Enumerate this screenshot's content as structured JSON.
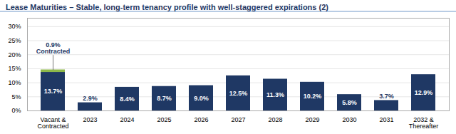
{
  "chart_data": {
    "type": "bar",
    "title": "Lease Maturities – Stable, long-term tenancy profile with well-staggered expirations (2)",
    "categories": [
      "Vacant &\nContracted",
      "2023",
      "2024",
      "2025",
      "2026",
      "2027",
      "2028",
      "2029",
      "2030",
      "2031",
      "2032 &\nThereafter"
    ],
    "stacked": true,
    "series": [
      {
        "color": "#1F3864",
        "values": [
          13.7,
          2.9,
          8.4,
          8.7,
          9.0,
          12.5,
          11.3,
          10.2,
          5.8,
          3.7,
          12.9
        ],
        "value_labels": [
          "13.7%",
          "2.9%",
          "8.4%",
          "8.7%",
          "9.0%",
          "12.5%",
          "11.3%",
          "10.2%",
          "5.8%",
          "3.7%",
          "12.9%"
        ]
      },
      {
        "name": "Contracted",
        "color": "#8DB84A",
        "values": [
          0.9,
          null,
          null,
          null,
          null,
          null,
          null,
          null,
          null,
          null,
          null
        ]
      }
    ],
    "data_labels": true,
    "annotations": [
      {
        "text": "0.9%\nContracted",
        "x": "Vacant &\nContracted"
      }
    ],
    "ylim": [
      0,
      33
    ],
    "yticks": [
      {
        "value": 0,
        "label": "0%"
      },
      {
        "value": 5,
        "label": "5%"
      },
      {
        "value": 10,
        "label": "10%"
      },
      {
        "value": 15,
        "label": "15%"
      },
      {
        "value": 20,
        "label": "20%"
      },
      {
        "value": 25,
        "label": "25%"
      },
      {
        "value": 30,
        "label": "30%"
      }
    ],
    "grid": true
  }
}
